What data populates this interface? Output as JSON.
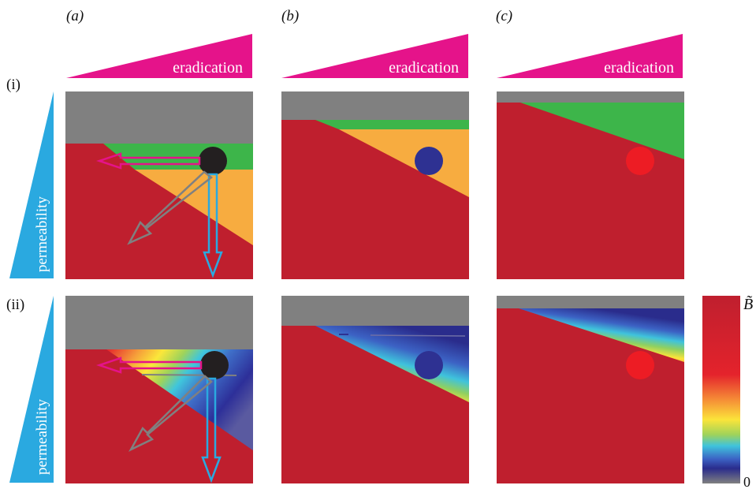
{
  "columns": [
    {
      "label": "(a)",
      "wedge_text": "eradication"
    },
    {
      "label": "(b)",
      "wedge_text": "eradication"
    },
    {
      "label": "(c)",
      "wedge_text": "eradication"
    }
  ],
  "rows": [
    {
      "label": "(i)",
      "wedge_text": "permeability"
    },
    {
      "label": "(ii)",
      "wedge_text": "permeability"
    }
  ],
  "colorbar": {
    "top_label": "B̃",
    "bottom_label": "0"
  },
  "colors": {
    "magenta": "#e5138a",
    "cyan": "#2aa9e0",
    "red": "#bf1f2e",
    "grey": "#808080",
    "green": "#3db54a",
    "orange": "#f7ac40",
    "marker_black": "#231f20",
    "marker_navy": "#2e3192",
    "marker_red": "#ed1c24"
  }
}
